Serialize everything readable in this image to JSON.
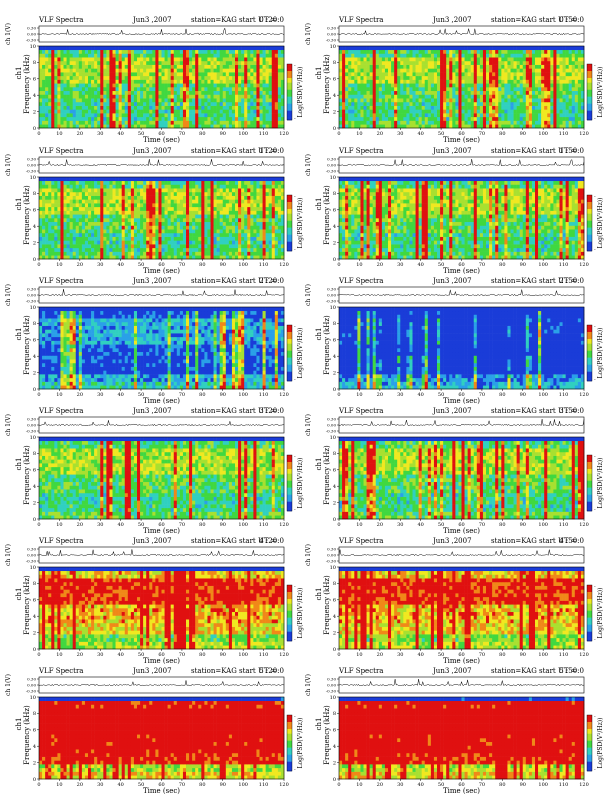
{
  "page": {
    "background": "#ffffff"
  },
  "common": {
    "header_prefix": "VLF Spectra",
    "station": "station=KAG",
    "start_prefix": "start UT =",
    "xlabel": "Time (sec)",
    "ylabel": "Frequency (kHz)",
    "trace_label": "ch 1(V)",
    "channel_label": "ch1",
    "colorbar_label": "Log(PSD(V²/Hz))",
    "x_ticks": [
      "0",
      "10",
      "20",
      "30",
      "40",
      "50",
      "60",
      "70",
      "80",
      "90",
      "100",
      "110",
      "120"
    ],
    "y_ticks": [
      "0",
      "2",
      "4",
      "6",
      "8",
      "10"
    ],
    "trace_ticks": [
      "0.30",
      "0.00",
      "-0.30"
    ],
    "colorbar_ticks": [
      "-",
      "-"
    ],
    "colors": {
      "low": "#0000c8",
      "mid_low": "#00c8c8",
      "mid": "#00d000",
      "mid_high": "#f0f000",
      "high": "#e00000",
      "black": "#000000"
    }
  },
  "chart_data": [
    {
      "type": "heatmap",
      "header_date": "Jun3 ,2007",
      "start_time": "0 :20:0",
      "xlabel": "Time (sec)",
      "ylabel": "Frequency (kHz)",
      "xlim": [
        0,
        120
      ],
      "ylim": [
        0,
        10
      ],
      "level": "moderate"
    },
    {
      "type": "heatmap",
      "header_date": "Jun3 ,2007",
      "start_time": "0 :50:0",
      "xlabel": "Time (sec)",
      "ylabel": "Frequency (kHz)",
      "xlim": [
        0,
        120
      ],
      "ylim": [
        0,
        10
      ],
      "level": "moderate"
    },
    {
      "type": "heatmap",
      "header_date": "Jun3 ,2007",
      "start_time": "1 :20:0",
      "xlabel": "Time (sec)",
      "ylabel": "Frequency (kHz)",
      "xlim": [
        0,
        120
      ],
      "ylim": [
        0,
        10
      ],
      "level": "moderate"
    },
    {
      "type": "heatmap",
      "header_date": "Jun3 ,2007",
      "start_time": "1 :50:0",
      "xlabel": "Time (sec)",
      "ylabel": "Frequency (kHz)",
      "xlim": [
        0,
        120
      ],
      "ylim": [
        0,
        10
      ],
      "level": "moderate"
    },
    {
      "type": "heatmap",
      "header_date": "Jun3 ,2007",
      "start_time": "2 :20:0",
      "xlabel": "Time (sec)",
      "ylabel": "Frequency (kHz)",
      "xlim": [
        0,
        120
      ],
      "ylim": [
        0,
        10
      ],
      "level": "low"
    },
    {
      "type": "heatmap",
      "header_date": "Jun3 ,2007",
      "start_time": "2 :50:0",
      "xlabel": "Time (sec)",
      "ylabel": "Frequency (kHz)",
      "xlim": [
        0,
        120
      ],
      "ylim": [
        0,
        10
      ],
      "level": "low-blue"
    },
    {
      "type": "heatmap",
      "header_date": "Jun3 ,2007",
      "start_time": "3 :20:0",
      "xlabel": "Time (sec)",
      "ylabel": "Frequency (kHz)",
      "xlim": [
        0,
        120
      ],
      "ylim": [
        0,
        10
      ],
      "level": "moderate"
    },
    {
      "type": "heatmap",
      "header_date": "Jun3 ,2007",
      "start_time": "3 :50:0",
      "xlabel": "Time (sec)",
      "ylabel": "Frequency (kHz)",
      "xlim": [
        0,
        120
      ],
      "ylim": [
        0,
        10
      ],
      "level": "moderate"
    },
    {
      "type": "heatmap",
      "header_date": "Jun3 ,2007",
      "start_time": "4 :20:0",
      "xlabel": "Time (sec)",
      "ylabel": "Frequency (kHz)",
      "xlim": [
        0,
        120
      ],
      "ylim": [
        0,
        10
      ],
      "level": "high"
    },
    {
      "type": "heatmap",
      "header_date": "Jun3 ,2007",
      "start_time": "4 :50:0",
      "xlabel": "Time (sec)",
      "ylabel": "Frequency (kHz)",
      "xlim": [
        0,
        120
      ],
      "ylim": [
        0,
        10
      ],
      "level": "high"
    },
    {
      "type": "heatmap",
      "header_date": "Jun3 ,2007",
      "start_time": "5 :20:0",
      "xlabel": "Time (sec)",
      "ylabel": "Frequency (kHz)",
      "xlim": [
        0,
        120
      ],
      "ylim": [
        0,
        10
      ],
      "level": "very-high"
    },
    {
      "type": "heatmap",
      "header_date": "Jun3 ,2007",
      "start_time": "5 :50:0",
      "xlabel": "Time (sec)",
      "ylabel": "Frequency (kHz)",
      "xlim": [
        0,
        120
      ],
      "ylim": [
        0,
        10
      ],
      "level": "very-high"
    }
  ]
}
